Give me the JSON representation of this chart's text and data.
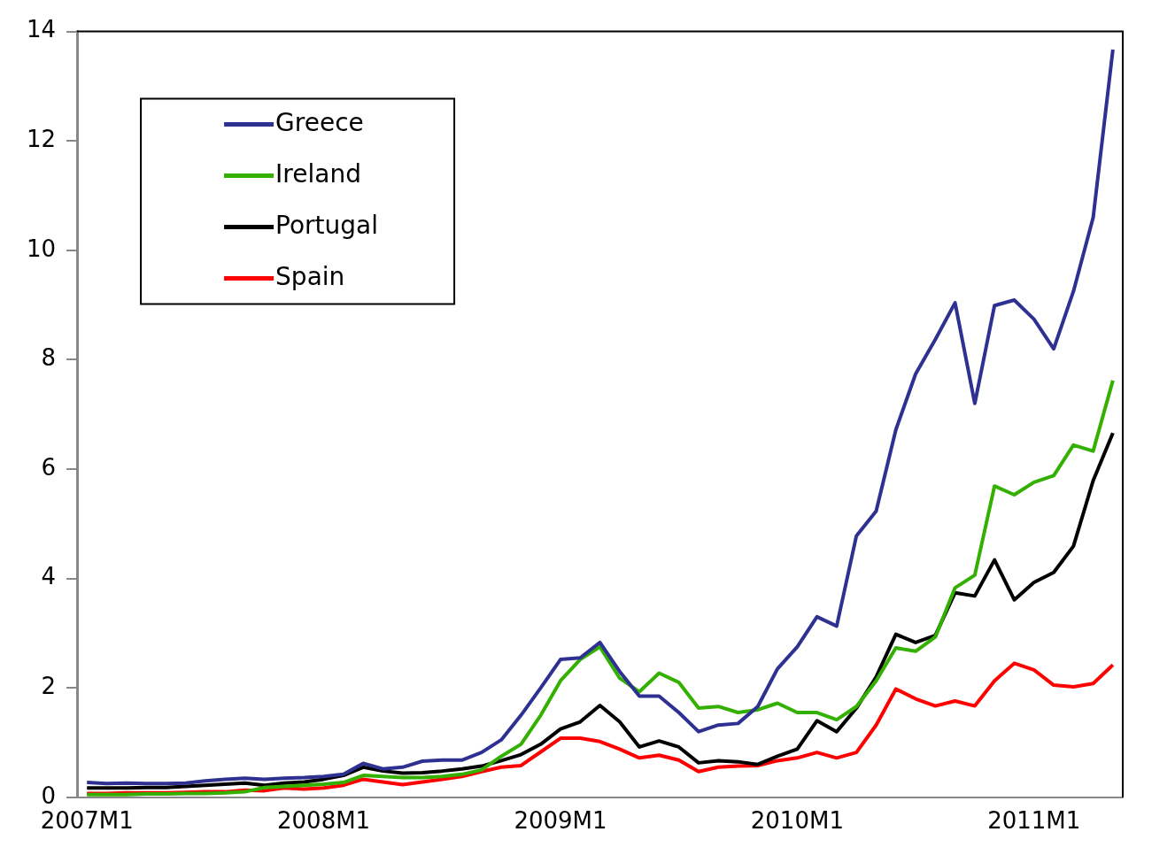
{
  "chart_data": {
    "type": "line",
    "categories": [
      "2007M1",
      null,
      null,
      null,
      null,
      null,
      null,
      null,
      null,
      null,
      null,
      null,
      "2008M1",
      null,
      null,
      null,
      null,
      null,
      null,
      null,
      null,
      null,
      null,
      null,
      "2009M1",
      null,
      null,
      null,
      null,
      null,
      null,
      null,
      null,
      null,
      null,
      null,
      "2010M1",
      null,
      null,
      null,
      null,
      null,
      null,
      null,
      null,
      null,
      null,
      null,
      "2011M1",
      null,
      null,
      null,
      null
    ],
    "series": [
      {
        "name": "Greece",
        "color": "#2e3192",
        "values": [
          0.27,
          0.25,
          0.26,
          0.25,
          0.25,
          0.26,
          0.3,
          0.33,
          0.35,
          0.33,
          0.35,
          0.36,
          0.38,
          0.42,
          0.62,
          0.52,
          0.55,
          0.66,
          0.68,
          0.68,
          0.82,
          1.05,
          1.5,
          2.0,
          2.52,
          2.55,
          2.83,
          2.3,
          1.85,
          1.85,
          1.55,
          1.2,
          1.32,
          1.35,
          1.66,
          2.35,
          2.75,
          3.3,
          3.13,
          4.78,
          5.23,
          6.72,
          7.74,
          8.37,
          9.04,
          7.2,
          8.99,
          9.09,
          8.74,
          8.2,
          9.25,
          10.6,
          13.67
        ]
      },
      {
        "name": "Ireland",
        "color": "#33b000",
        "values": [
          0.05,
          0.05,
          0.05,
          0.06,
          0.06,
          0.07,
          0.07,
          0.08,
          0.1,
          0.18,
          0.2,
          0.22,
          0.24,
          0.27,
          0.4,
          0.38,
          0.36,
          0.36,
          0.38,
          0.42,
          0.5,
          0.75,
          0.97,
          1.5,
          2.13,
          2.52,
          2.75,
          2.18,
          1.93,
          2.27,
          2.1,
          1.63,
          1.66,
          1.55,
          1.6,
          1.72,
          1.55,
          1.55,
          1.42,
          1.66,
          2.13,
          2.73,
          2.67,
          2.93,
          3.83,
          4.06,
          5.69,
          5.53,
          5.76,
          5.88,
          6.44,
          6.33,
          7.62
        ]
      },
      {
        "name": "Portugal",
        "color": "#000000",
        "values": [
          0.17,
          0.17,
          0.17,
          0.18,
          0.18,
          0.2,
          0.22,
          0.24,
          0.26,
          0.22,
          0.26,
          0.28,
          0.33,
          0.4,
          0.55,
          0.48,
          0.44,
          0.45,
          0.48,
          0.52,
          0.57,
          0.67,
          0.78,
          0.97,
          1.25,
          1.38,
          1.68,
          1.38,
          0.92,
          1.03,
          0.92,
          0.63,
          0.67,
          0.65,
          0.6,
          0.75,
          0.88,
          1.4,
          1.2,
          1.63,
          2.2,
          2.98,
          2.83,
          2.96,
          3.74,
          3.68,
          4.34,
          3.61,
          3.93,
          4.11,
          4.59,
          5.79,
          6.66
        ]
      },
      {
        "name": "Spain",
        "color": "#ff0000",
        "values": [
          0.07,
          0.07,
          0.08,
          0.08,
          0.08,
          0.09,
          0.1,
          0.1,
          0.13,
          0.12,
          0.17,
          0.15,
          0.17,
          0.22,
          0.33,
          0.28,
          0.23,
          0.28,
          0.33,
          0.38,
          0.47,
          0.55,
          0.58,
          0.83,
          1.08,
          1.08,
          1.02,
          0.88,
          0.72,
          0.77,
          0.68,
          0.47,
          0.55,
          0.57,
          0.58,
          0.67,
          0.72,
          0.82,
          0.72,
          0.82,
          1.32,
          1.98,
          1.8,
          1.67,
          1.76,
          1.67,
          2.13,
          2.45,
          2.33,
          2.05,
          2.02,
          2.08,
          2.42
        ]
      }
    ],
    "ylim": [
      0,
      14
    ],
    "yticks": [
      0,
      2,
      4,
      6,
      8,
      10,
      12,
      14
    ],
    "grid": false,
    "legend": "top left",
    "marker": "none",
    "line_style": "solid"
  }
}
